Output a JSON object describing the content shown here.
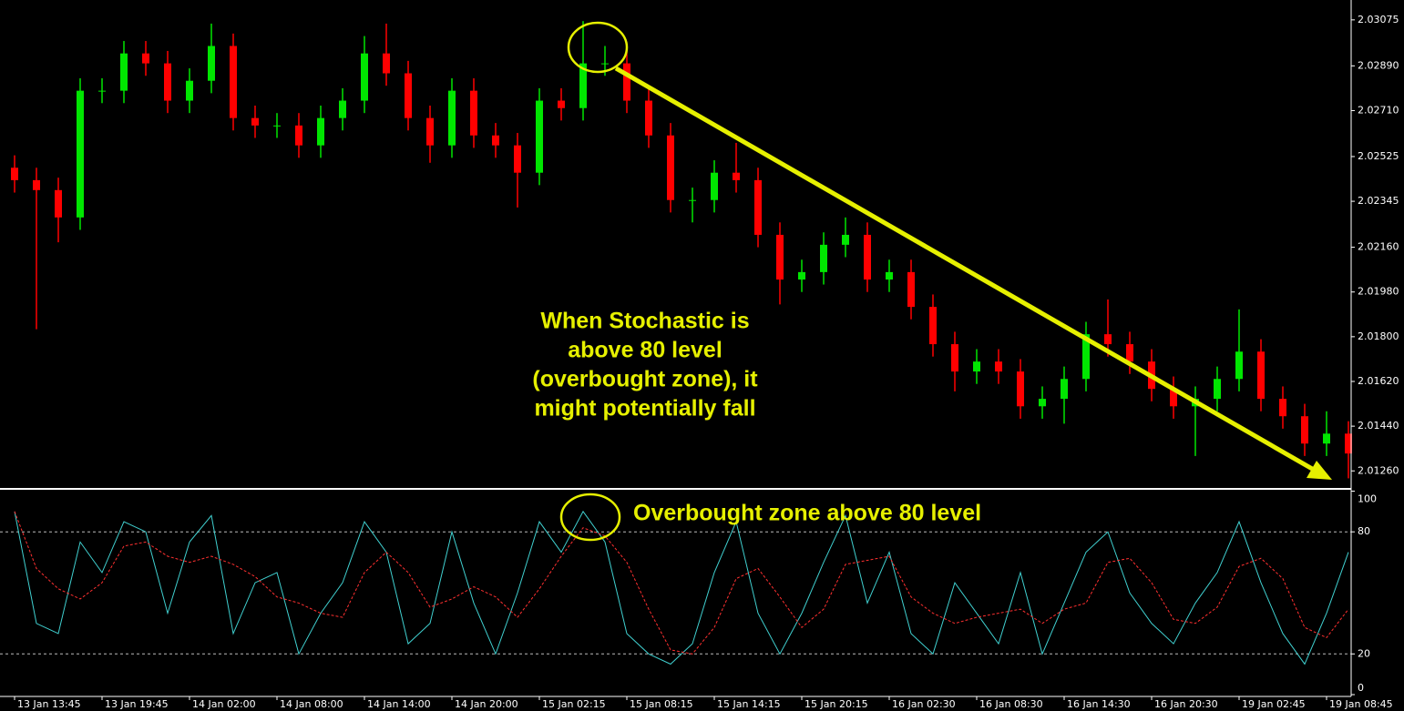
{
  "chart_data": [
    {
      "type": "candlestick",
      "categories": [
        "13 Jan 13:45",
        null,
        null,
        null,
        "13 Jan 19:45",
        null,
        null,
        null,
        "14 Jan 02:00",
        null,
        null,
        null,
        "14 Jan 08:00",
        null,
        null,
        null,
        "14 Jan 14:00",
        null,
        null,
        null,
        "14 Jan 20:00",
        null,
        null,
        null,
        "15 Jan 02:15",
        null,
        null,
        null,
        "15 Jan 08:15",
        null,
        null,
        null,
        "15 Jan 14:15",
        null,
        null,
        null,
        "15 Jan 20:15",
        null,
        null,
        null,
        "16 Jan 02:30",
        null,
        null,
        null,
        "16 Jan 08:30",
        null,
        null,
        null,
        "16 Jan 14:30",
        null,
        null,
        null,
        "16 Jan 20:30",
        null,
        null,
        null,
        "19 Jan 02:45",
        null,
        null,
        null,
        "19 Jan 08:45",
        null
      ],
      "open": [
        2.0248,
        2.0243,
        2.0239,
        2.0228,
        2.0279,
        2.0279,
        2.0294,
        2.029,
        2.0275,
        2.0283,
        2.0297,
        2.0268,
        2.0265,
        2.0265,
        2.0257,
        2.0268,
        2.0275,
        2.0294,
        2.0286,
        2.0268,
        2.0257,
        2.0279,
        2.0261,
        2.0257,
        2.0246,
        2.0275,
        2.0272,
        2.029,
        2.029,
        2.0275,
        2.0261,
        2.0235,
        2.0235,
        2.0246,
        2.0243,
        2.0221,
        2.0203,
        2.0206,
        2.0217,
        2.0221,
        2.0203,
        2.0206,
        2.0192,
        2.0177,
        2.0166,
        2.017,
        2.0166,
        2.0152,
        2.0155,
        2.0163,
        2.0181,
        2.0177,
        2.017,
        2.0159,
        2.0152,
        2.0155,
        2.0163,
        2.0174,
        2.0155,
        2.0148,
        2.0137,
        2.0141
      ],
      "high": [
        2.0253,
        2.0248,
        2.0244,
        2.0284,
        2.0284,
        2.0299,
        2.0299,
        2.0295,
        2.0288,
        2.0306,
        2.0302,
        2.0273,
        2.027,
        2.027,
        2.0273,
        2.028,
        2.0301,
        2.0306,
        2.0291,
        2.0273,
        2.0284,
        2.0284,
        2.0266,
        2.0262,
        2.028,
        2.028,
        2.0307,
        2.0297,
        2.0295,
        2.028,
        2.0266,
        2.024,
        2.0251,
        2.0258,
        2.0248,
        2.0226,
        2.0211,
        2.0222,
        2.0228,
        2.0226,
        2.0211,
        2.0211,
        2.0197,
        2.0182,
        2.0175,
        2.0175,
        2.0171,
        2.016,
        2.0168,
        2.0186,
        2.0195,
        2.0182,
        2.0175,
        2.0164,
        2.016,
        2.0168,
        2.0191,
        2.0179,
        2.016,
        2.0153,
        2.015,
        2.0146
      ],
      "low": [
        2.0238,
        2.0183,
        2.0218,
        2.0223,
        2.0274,
        2.0274,
        2.0285,
        2.027,
        2.027,
        2.0278,
        2.0263,
        2.026,
        2.026,
        2.0252,
        2.0252,
        2.0263,
        2.027,
        2.0281,
        2.0263,
        2.025,
        2.0252,
        2.0256,
        2.0252,
        2.0232,
        2.0241,
        2.0267,
        2.0267,
        2.0285,
        2.027,
        2.0256,
        2.023,
        2.0226,
        2.023,
        2.0238,
        2.0216,
        2.0193,
        2.0198,
        2.0201,
        2.0212,
        2.0198,
        2.0198,
        2.0187,
        2.0172,
        2.0158,
        2.0161,
        2.0161,
        2.0147,
        2.0147,
        2.0145,
        2.0158,
        2.0172,
        2.0165,
        2.0154,
        2.0147,
        2.0132,
        2.015,
        2.0158,
        2.015,
        2.0143,
        2.0132,
        2.0132,
        2.0123
      ],
      "close": [
        2.0243,
        2.0239,
        2.0228,
        2.0279,
        2.0279,
        2.0294,
        2.029,
        2.0275,
        2.0283,
        2.0297,
        2.0268,
        2.0265,
        2.0265,
        2.0257,
        2.0268,
        2.0275,
        2.0294,
        2.0286,
        2.0268,
        2.0257,
        2.0279,
        2.0261,
        2.0257,
        2.0246,
        2.0275,
        2.0272,
        2.029,
        2.029,
        2.0275,
        2.0261,
        2.0235,
        2.0235,
        2.0246,
        2.0243,
        2.0221,
        2.0203,
        2.0206,
        2.0217,
        2.0221,
        2.0203,
        2.0206,
        2.0192,
        2.0177,
        2.0166,
        2.017,
        2.0166,
        2.0152,
        2.0155,
        2.0163,
        2.0181,
        2.0177,
        2.017,
        2.0159,
        2.0152,
        2.0155,
        2.0163,
        2.0174,
        2.0155,
        2.0148,
        2.0137,
        2.0141,
        2.0133
      ],
      "up_color": "#00e600",
      "down_color": "#ff0000",
      "ylim": [
        2.01195,
        2.03155
      ],
      "yticks": [
        2.03075,
        {
          "value": 2.0289,
          "label": "2.02890"
        },
        {
          "value": 2.0271,
          "label": "2.02710"
        },
        2.02525,
        2.02345,
        {
          "value": 2.0216,
          "label": "2.02160"
        },
        {
          "value": 2.0198,
          "label": "2.01980"
        },
        {
          "value": 2.018,
          "label": "2.01800"
        },
        {
          "value": 2.0162,
          "label": "2.01620"
        },
        {
          "value": 2.0144,
          "label": "2.01440"
        },
        {
          "value": 2.0126,
          "label": "2.01260"
        }
      ],
      "grid": false,
      "annotation": [
        "When Stochastic is",
        "above 80 level",
        "(overbought zone), it",
        "might potentially fall"
      ]
    },
    {
      "type": "line",
      "series": [
        {
          "color": "#40d0d0",
          "style": "solid",
          "values": [
            90,
            35,
            30,
            75,
            60,
            85,
            80,
            40,
            75,
            88,
            30,
            55,
            60,
            20,
            40,
            55,
            85,
            70,
            25,
            35,
            80,
            45,
            20,
            50,
            85,
            70,
            90,
            75,
            30,
            20,
            15,
            25,
            60,
            85,
            40,
            20,
            40,
            65,
            88,
            45,
            70,
            30,
            20,
            55,
            40,
            25,
            60,
            20,
            45,
            70,
            80,
            50,
            35,
            25,
            45,
            60,
            85,
            55,
            30,
            15,
            40,
            70
          ]
        },
        {
          "color": "#ff3030",
          "style": "dashed",
          "values": [
            90,
            62,
            52,
            47,
            55,
            73,
            75,
            68,
            65,
            68,
            64,
            58,
            48,
            45,
            40,
            38,
            60,
            70,
            60,
            43,
            47,
            53,
            48,
            38,
            52,
            68,
            82,
            78,
            65,
            42,
            22,
            20,
            33,
            57,
            62,
            48,
            33,
            42,
            64,
            66,
            68,
            48,
            40,
            35,
            38,
            40,
            42,
            35,
            42,
            45,
            65,
            67,
            55,
            37,
            35,
            43,
            63,
            67,
            57,
            33,
            28,
            42
          ]
        }
      ],
      "ylim": [
        0,
        100
      ],
      "yticks": [
        0,
        20,
        80,
        100
      ],
      "grid": true,
      "annotation": "Overbought zone above 80 level"
    }
  ]
}
